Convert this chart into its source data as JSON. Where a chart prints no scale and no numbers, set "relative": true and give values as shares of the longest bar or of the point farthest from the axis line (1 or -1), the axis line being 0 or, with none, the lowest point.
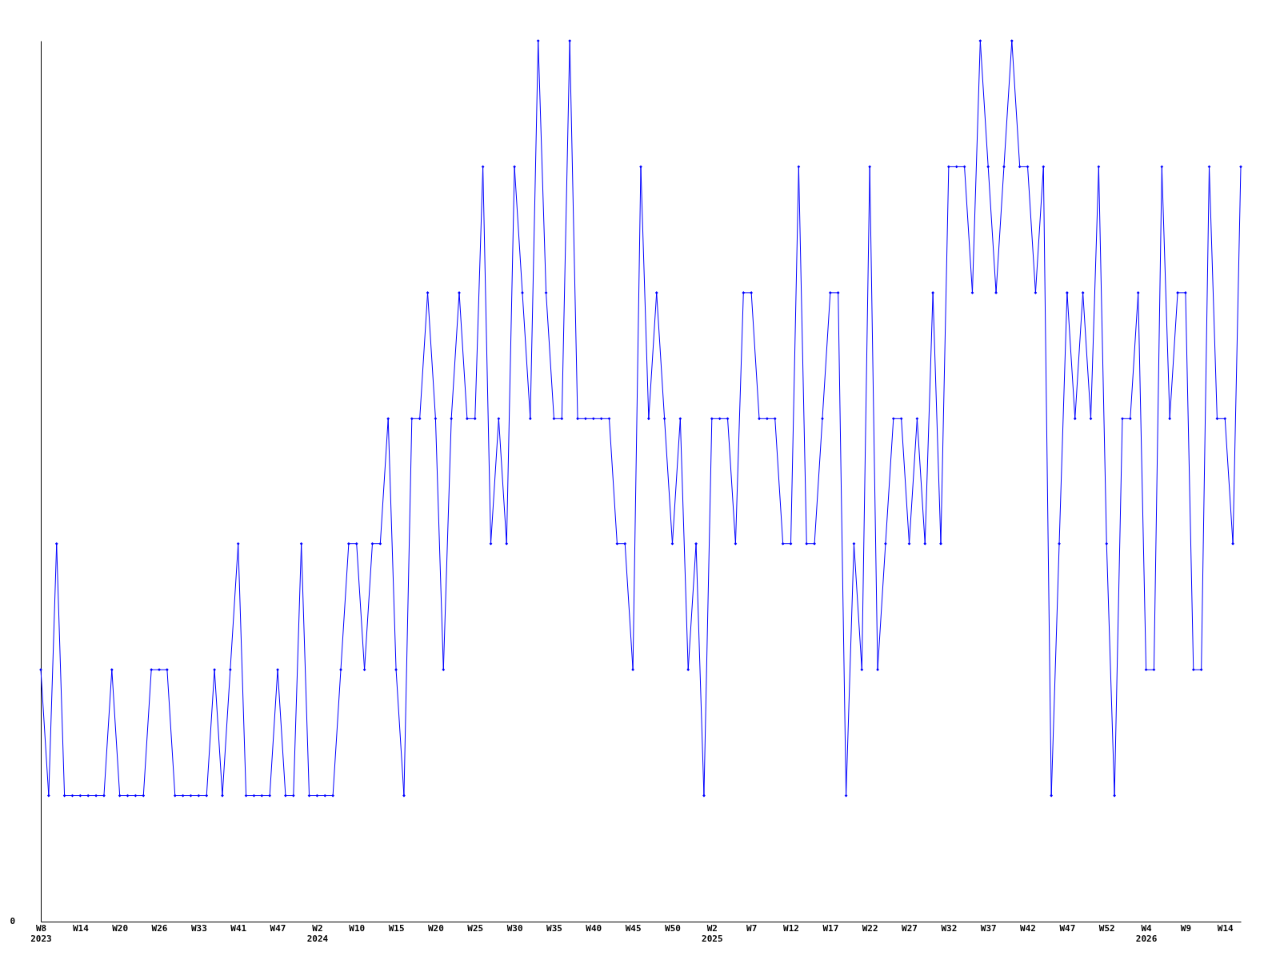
{
  "chart_data": {
    "type": "line",
    "relative": true,
    "marker": "diamond",
    "line_style": "solid",
    "grid": false,
    "annotations": [
      "0"
    ],
    "categories": [
      "W8\n2023",
      null,
      null,
      null,
      null,
      "W14",
      null,
      null,
      null,
      null,
      "W20",
      null,
      null,
      null,
      null,
      "W26",
      null,
      null,
      null,
      null,
      "W33",
      null,
      null,
      null,
      null,
      "W41",
      null,
      null,
      null,
      null,
      "W47",
      null,
      null,
      null,
      null,
      "W2\n2024",
      null,
      null,
      null,
      null,
      "W10",
      null,
      null,
      null,
      null,
      "W15",
      null,
      null,
      null,
      null,
      "W20",
      null,
      null,
      null,
      null,
      "W25",
      null,
      null,
      null,
      null,
      "W30",
      null,
      null,
      null,
      null,
      "W35",
      null,
      null,
      null,
      null,
      "W40",
      null,
      null,
      null,
      null,
      "W45",
      null,
      null,
      null,
      null,
      "W50",
      null,
      null,
      null,
      null,
      "W2\n2025",
      null,
      null,
      null,
      null,
      "W7",
      null,
      null,
      null,
      null,
      "W12",
      null,
      null,
      null,
      null,
      "W17",
      null,
      null,
      null,
      null,
      "W22",
      null,
      null,
      null,
      null,
      "W27",
      null,
      null,
      null,
      null,
      "W32",
      null,
      null,
      null,
      null,
      "W37",
      null,
      null,
      null,
      null,
      "W42",
      null,
      null,
      null,
      null,
      "W47",
      null,
      null,
      null,
      null,
      "W52",
      null,
      null,
      null,
      null,
      "W4\n2026",
      null,
      null,
      null,
      null,
      "W9",
      null,
      null,
      null,
      null,
      "W14",
      null,
      null
    ],
    "series": [
      {
        "color": "#0000ff",
        "values": [
          0.286,
          0.143,
          0.429,
          0.143,
          0.143,
          0.143,
          0.143,
          0.143,
          0.143,
          0.286,
          0.143,
          0.143,
          0.143,
          0.143,
          0.286,
          0.286,
          0.286,
          0.143,
          0.143,
          0.143,
          0.143,
          0.143,
          0.286,
          0.143,
          0.286,
          0.429,
          0.143,
          0.143,
          0.143,
          0.143,
          0.286,
          0.143,
          0.143,
          0.429,
          0.143,
          0.143,
          0.143,
          0.143,
          0.286,
          0.429,
          0.429,
          0.286,
          0.429,
          0.429,
          0.571,
          0.286,
          0.143,
          0.571,
          0.571,
          0.714,
          0.571,
          0.286,
          0.571,
          0.714,
          0.571,
          0.571,
          0.857,
          0.429,
          0.571,
          0.429,
          0.857,
          0.714,
          0.571,
          1,
          0.714,
          0.571,
          0.571,
          1,
          0.571,
          0.571,
          0.571,
          0.571,
          0.571,
          0.429,
          0.429,
          0.286,
          0.857,
          0.571,
          0.714,
          0.571,
          0.429,
          0.571,
          0.286,
          0.429,
          0.143,
          0.571,
          0.571,
          0.571,
          0.429,
          0.714,
          0.714,
          0.571,
          0.571,
          0.571,
          0.429,
          0.429,
          0.857,
          0.429,
          0.429,
          0.571,
          0.714,
          0.714,
          0.143,
          0.429,
          0.286,
          0.857,
          0.286,
          0.429,
          0.571,
          0.571,
          0.429,
          0.571,
          0.429,
          0.714,
          0.429,
          0.857,
          0.857,
          0.857,
          0.714,
          1,
          0.857,
          0.714,
          0.857,
          1,
          0.857,
          0.857,
          0.714,
          0.857,
          0.143,
          0.429,
          0.714,
          0.571,
          0.714,
          0.571,
          0.857,
          0.429,
          0.143,
          0.571,
          0.571,
          0.714,
          0.286,
          0.286,
          0.857,
          0.571,
          0.714,
          0.714,
          0.286,
          0.286,
          0.857,
          0.571,
          0.571,
          0.429,
          0.857
        ]
      }
    ]
  }
}
